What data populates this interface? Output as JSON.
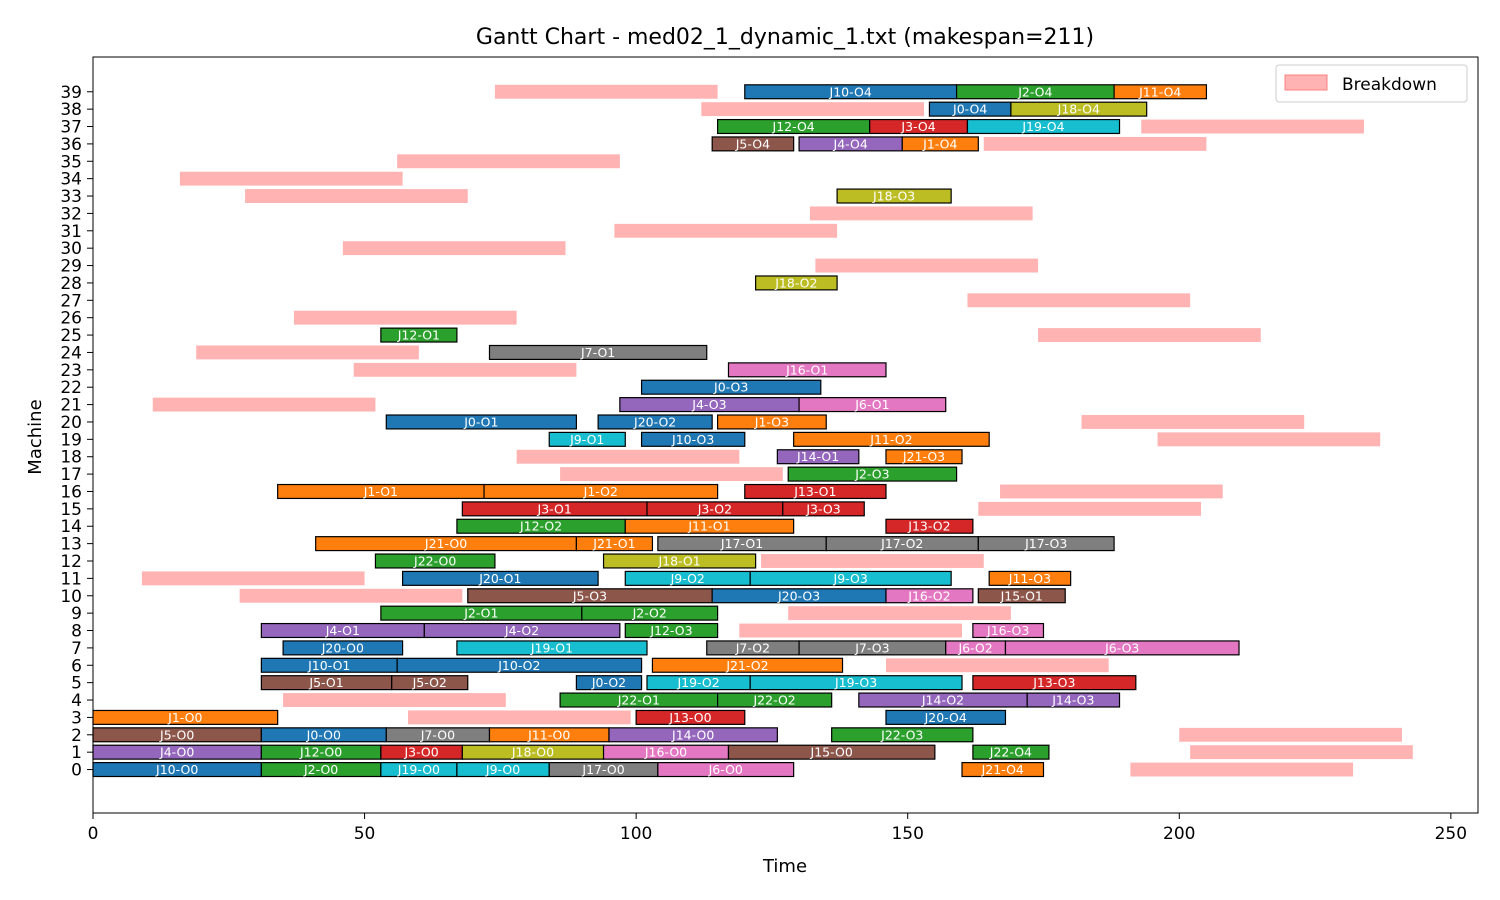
{
  "chart_data": {
    "type": "gantt",
    "title": "Gantt Chart - med02_1_dynamic_1.txt (makespan=211)",
    "xlabel": "Time",
    "ylabel": "Machine",
    "xlim": [
      0,
      255
    ],
    "ylim": [
      -2.5,
      41
    ],
    "x_ticks": [
      0,
      50,
      100,
      150,
      200,
      250
    ],
    "y_ticks": [
      0,
      1,
      2,
      3,
      4,
      5,
      6,
      7,
      8,
      9,
      10,
      11,
      12,
      13,
      14,
      15,
      16,
      17,
      18,
      19,
      20,
      21,
      22,
      23,
      24,
      25,
      26,
      27,
      28,
      29,
      30,
      31,
      32,
      33,
      34,
      35,
      36,
      37,
      38,
      39
    ],
    "legend": {
      "entries": [
        "Breakdown"
      ],
      "placement": "top-right"
    },
    "colors": {
      "breakdown": "#ffb3b3",
      "J0": "#1f77b4",
      "J1": "#ff7f0e",
      "J2": "#2ca02c",
      "J3": "#d62728",
      "J4": "#9467bd",
      "J5": "#8c564b",
      "J6": "#e377c2",
      "J7": "#7f7f7f",
      "J8": "#bcbd22",
      "J9": "#17becf",
      "J10": "#1f77b4",
      "J11": "#ff7f0e",
      "J12": "#2ca02c",
      "J13": "#d62728",
      "J14": "#9467bd",
      "J15": "#8c564b",
      "J16": "#e377c2",
      "J17": "#7f7f7f",
      "J18": "#bcbd22",
      "J19": "#17becf",
      "J20": "#1f77b4",
      "J21": "#ff7f0e",
      "J22": "#2ca02c"
    },
    "breakdowns": [
      {
        "machine": 39,
        "start": 74,
        "end": 115
      },
      {
        "machine": 38,
        "start": 112,
        "end": 153
      },
      {
        "machine": 37,
        "start": 193,
        "end": 234
      },
      {
        "machine": 36,
        "start": 164,
        "end": 205
      },
      {
        "machine": 35,
        "start": 56,
        "end": 97
      },
      {
        "machine": 34,
        "start": 16,
        "end": 57
      },
      {
        "machine": 33,
        "start": 28,
        "end": 69
      },
      {
        "machine": 32,
        "start": 132,
        "end": 173
      },
      {
        "machine": 31,
        "start": 96,
        "end": 137
      },
      {
        "machine": 30,
        "start": 46,
        "end": 87
      },
      {
        "machine": 29,
        "start": 133,
        "end": 174
      },
      {
        "machine": 27,
        "start": 161,
        "end": 202
      },
      {
        "machine": 26,
        "start": 37,
        "end": 78
      },
      {
        "machine": 25,
        "start": 174,
        "end": 215
      },
      {
        "machine": 24,
        "start": 19,
        "end": 60
      },
      {
        "machine": 23,
        "start": 48,
        "end": 89
      },
      {
        "machine": 21,
        "start": 11,
        "end": 52
      },
      {
        "machine": 20,
        "start": 182,
        "end": 223
      },
      {
        "machine": 19,
        "start": 196,
        "end": 237
      },
      {
        "machine": 18,
        "start": 78,
        "end": 119
      },
      {
        "machine": 17,
        "start": 86,
        "end": 127
      },
      {
        "machine": 16,
        "start": 167,
        "end": 208
      },
      {
        "machine": 15,
        "start": 163,
        "end": 204
      },
      {
        "machine": 12,
        "start": 123,
        "end": 164
      },
      {
        "machine": 11,
        "start": 9,
        "end": 50
      },
      {
        "machine": 10,
        "start": 27,
        "end": 68
      },
      {
        "machine": 9,
        "start": 128,
        "end": 169
      },
      {
        "machine": 8,
        "start": 119,
        "end": 160
      },
      {
        "machine": 6,
        "start": 146,
        "end": 187
      },
      {
        "machine": 4,
        "start": 35,
        "end": 76
      },
      {
        "machine": 3,
        "start": 58,
        "end": 99
      },
      {
        "machine": 2,
        "start": 200,
        "end": 241
      },
      {
        "machine": 1,
        "start": 202,
        "end": 243
      },
      {
        "machine": 0,
        "start": 191,
        "end": 232
      }
    ],
    "operations": [
      {
        "machine": 39,
        "start": 120,
        "end": 159,
        "job": "J10",
        "label": "J10-O4"
      },
      {
        "machine": 39,
        "start": 159,
        "end": 188,
        "job": "J2",
        "label": "J2-O4"
      },
      {
        "machine": 39,
        "start": 188,
        "end": 205,
        "job": "J11",
        "label": "J11-O4"
      },
      {
        "machine": 38,
        "start": 154,
        "end": 169,
        "job": "J0",
        "label": "J0-O4"
      },
      {
        "machine": 38,
        "start": 169,
        "end": 194,
        "job": "J18",
        "label": "J18-O4"
      },
      {
        "machine": 37,
        "start": 115,
        "end": 143,
        "job": "J12",
        "label": "J12-O4"
      },
      {
        "machine": 37,
        "start": 143,
        "end": 161,
        "job": "J3",
        "label": "J3-O4"
      },
      {
        "machine": 37,
        "start": 161,
        "end": 189,
        "job": "J19",
        "label": "J19-O4"
      },
      {
        "machine": 36,
        "start": 114,
        "end": 129,
        "job": "J5",
        "label": "J5-O4"
      },
      {
        "machine": 36,
        "start": 130,
        "end": 149,
        "job": "J4",
        "label": "J4-O4"
      },
      {
        "machine": 36,
        "start": 149,
        "end": 163,
        "job": "J1",
        "label": "J1-O4"
      },
      {
        "machine": 33,
        "start": 137,
        "end": 158,
        "job": "J18",
        "label": "J18-O3"
      },
      {
        "machine": 28,
        "start": 122,
        "end": 137,
        "job": "J18",
        "label": "J18-O2"
      },
      {
        "machine": 25,
        "start": 53,
        "end": 67,
        "job": "J12",
        "label": "J12-O1"
      },
      {
        "machine": 24,
        "start": 73,
        "end": 113,
        "job": "J7",
        "label": "J7-O1"
      },
      {
        "machine": 23,
        "start": 117,
        "end": 146,
        "job": "J16",
        "label": "J16-O1"
      },
      {
        "machine": 22,
        "start": 101,
        "end": 134,
        "job": "J0",
        "label": "J0-O3"
      },
      {
        "machine": 21,
        "start": 97,
        "end": 130,
        "job": "J4",
        "label": "J4-O3"
      },
      {
        "machine": 21,
        "start": 130,
        "end": 157,
        "job": "J6",
        "label": "J6-O1"
      },
      {
        "machine": 20,
        "start": 54,
        "end": 89,
        "job": "J0",
        "label": "J0-O1"
      },
      {
        "machine": 20,
        "start": 93,
        "end": 114,
        "job": "J20",
        "label": "J20-O2"
      },
      {
        "machine": 20,
        "start": 115,
        "end": 135,
        "job": "J1",
        "label": "J1-O3"
      },
      {
        "machine": 19,
        "start": 84,
        "end": 98,
        "job": "J9",
        "label": "J9-O1"
      },
      {
        "machine": 19,
        "start": 101,
        "end": 120,
        "job": "J10",
        "label": "J10-O3"
      },
      {
        "machine": 19,
        "start": 129,
        "end": 165,
        "job": "J11",
        "label": "J11-O2"
      },
      {
        "machine": 18,
        "start": 126,
        "end": 141,
        "job": "J14",
        "label": "J14-O1"
      },
      {
        "machine": 18,
        "start": 146,
        "end": 160,
        "job": "J21",
        "label": "J21-O3"
      },
      {
        "machine": 17,
        "start": 128,
        "end": 159,
        "job": "J2",
        "label": "J2-O3"
      },
      {
        "machine": 16,
        "start": 34,
        "end": 72,
        "job": "J1",
        "label": "J1-O1"
      },
      {
        "machine": 16,
        "start": 72,
        "end": 115,
        "job": "J1",
        "label": "J1-O2"
      },
      {
        "machine": 16,
        "start": 120,
        "end": 146,
        "job": "J13",
        "label": "J13-O1"
      },
      {
        "machine": 15,
        "start": 68,
        "end": 102,
        "job": "J3",
        "label": "J3-O1"
      },
      {
        "machine": 15,
        "start": 102,
        "end": 127,
        "job": "J3",
        "label": "J3-O2"
      },
      {
        "machine": 15,
        "start": 127,
        "end": 142,
        "job": "J3",
        "label": "J3-O3"
      },
      {
        "machine": 14,
        "start": 67,
        "end": 98,
        "job": "J12",
        "label": "J12-O2"
      },
      {
        "machine": 14,
        "start": 98,
        "end": 129,
        "job": "J11",
        "label": "J11-O1"
      },
      {
        "machine": 14,
        "start": 146,
        "end": 162,
        "job": "J13",
        "label": "J13-O2"
      },
      {
        "machine": 13,
        "start": 41,
        "end": 89,
        "job": "J21",
        "label": "J21-O0"
      },
      {
        "machine": 13,
        "start": 89,
        "end": 103,
        "job": "J21",
        "label": "J21-O1"
      },
      {
        "machine": 13,
        "start": 104,
        "end": 135,
        "job": "J17",
        "label": "J17-O1"
      },
      {
        "machine": 13,
        "start": 135,
        "end": 163,
        "job": "J17",
        "label": "J17-O2"
      },
      {
        "machine": 13,
        "start": 163,
        "end": 188,
        "job": "J17",
        "label": "J17-O3"
      },
      {
        "machine": 12,
        "start": 52,
        "end": 74,
        "job": "J22",
        "label": "J22-O0"
      },
      {
        "machine": 12,
        "start": 94,
        "end": 122,
        "job": "J18",
        "label": "J18-O1"
      },
      {
        "machine": 11,
        "start": 57,
        "end": 93,
        "job": "J20",
        "label": "J20-O1"
      },
      {
        "machine": 11,
        "start": 98,
        "end": 121,
        "job": "J9",
        "label": "J9-O2"
      },
      {
        "machine": 11,
        "start": 121,
        "end": 158,
        "job": "J9",
        "label": "J9-O3"
      },
      {
        "machine": 11,
        "start": 165,
        "end": 180,
        "job": "J11",
        "label": "J11-O3"
      },
      {
        "machine": 10,
        "start": 69,
        "end": 114,
        "job": "J5",
        "label": "J5-O3"
      },
      {
        "machine": 10,
        "start": 114,
        "end": 146,
        "job": "J20",
        "label": "J20-O3"
      },
      {
        "machine": 10,
        "start": 146,
        "end": 162,
        "job": "J16",
        "label": "J16-O2"
      },
      {
        "machine": 10,
        "start": 163,
        "end": 179,
        "job": "J15",
        "label": "J15-O1"
      },
      {
        "machine": 9,
        "start": 53,
        "end": 90,
        "job": "J2",
        "label": "J2-O1"
      },
      {
        "machine": 9,
        "start": 90,
        "end": 115,
        "job": "J2",
        "label": "J2-O2"
      },
      {
        "machine": 8,
        "start": 31,
        "end": 61,
        "job": "J4",
        "label": "J4-O1"
      },
      {
        "machine": 8,
        "start": 61,
        "end": 97,
        "job": "J4",
        "label": "J4-O2"
      },
      {
        "machine": 8,
        "start": 98,
        "end": 115,
        "job": "J12",
        "label": "J12-O3"
      },
      {
        "machine": 8,
        "start": 162,
        "end": 175,
        "job": "J16",
        "label": "J16-O3"
      },
      {
        "machine": 7,
        "start": 35,
        "end": 57,
        "job": "J20",
        "label": "J20-O0"
      },
      {
        "machine": 7,
        "start": 67,
        "end": 102,
        "job": "J19",
        "label": "J19-O1"
      },
      {
        "machine": 7,
        "start": 113,
        "end": 130,
        "job": "J7",
        "label": "J7-O2"
      },
      {
        "machine": 7,
        "start": 130,
        "end": 157,
        "job": "J7",
        "label": "J7-O3"
      },
      {
        "machine": 7,
        "start": 157,
        "end": 168,
        "job": "J6",
        "label": "J6-O2"
      },
      {
        "machine": 7,
        "start": 168,
        "end": 211,
        "job": "J6",
        "label": "J6-O3"
      },
      {
        "machine": 6,
        "start": 31,
        "end": 56,
        "job": "J10",
        "label": "J10-O1"
      },
      {
        "machine": 6,
        "start": 56,
        "end": 101,
        "job": "J10",
        "label": "J10-O2"
      },
      {
        "machine": 6,
        "start": 103,
        "end": 138,
        "job": "J21",
        "label": "J21-O2"
      },
      {
        "machine": 5,
        "start": 31,
        "end": 55,
        "job": "J5",
        "label": "J5-O1"
      },
      {
        "machine": 5,
        "start": 55,
        "end": 69,
        "job": "J5",
        "label": "J5-O2"
      },
      {
        "machine": 5,
        "start": 89,
        "end": 101,
        "job": "J0",
        "label": "J0-O2"
      },
      {
        "machine": 5,
        "start": 102,
        "end": 121,
        "job": "J19",
        "label": "J19-O2"
      },
      {
        "machine": 5,
        "start": 121,
        "end": 160,
        "job": "J19",
        "label": "J19-O3"
      },
      {
        "machine": 5,
        "start": 162,
        "end": 192,
        "job": "J13",
        "label": "J13-O3"
      },
      {
        "machine": 4,
        "start": 86,
        "end": 115,
        "job": "J22",
        "label": "J22-O1"
      },
      {
        "machine": 4,
        "start": 115,
        "end": 136,
        "job": "J22",
        "label": "J22-O2"
      },
      {
        "machine": 4,
        "start": 141,
        "end": 172,
        "job": "J14",
        "label": "J14-O2"
      },
      {
        "machine": 4,
        "start": 172,
        "end": 189,
        "job": "J14",
        "label": "J14-O3"
      },
      {
        "machine": 3,
        "start": 0,
        "end": 34,
        "job": "J1",
        "label": "J1-O0"
      },
      {
        "machine": 3,
        "start": 100,
        "end": 120,
        "job": "J13",
        "label": "J13-O0"
      },
      {
        "machine": 3,
        "start": 146,
        "end": 168,
        "job": "J20",
        "label": "J20-O4"
      },
      {
        "machine": 2,
        "start": 0,
        "end": 31,
        "job": "J5",
        "label": "J5-O0"
      },
      {
        "machine": 2,
        "start": 31,
        "end": 54,
        "job": "J0",
        "label": "J0-O0"
      },
      {
        "machine": 2,
        "start": 54,
        "end": 73,
        "job": "J7",
        "label": "J7-O0"
      },
      {
        "machine": 2,
        "start": 73,
        "end": 95,
        "job": "J11",
        "label": "J11-O0"
      },
      {
        "machine": 2,
        "start": 95,
        "end": 126,
        "job": "J14",
        "label": "J14-O0"
      },
      {
        "machine": 2,
        "start": 136,
        "end": 162,
        "job": "J22",
        "label": "J22-O3"
      },
      {
        "machine": 1,
        "start": 0,
        "end": 31,
        "job": "J4",
        "label": "J4-O0"
      },
      {
        "machine": 1,
        "start": 31,
        "end": 53,
        "job": "J12",
        "label": "J12-O0"
      },
      {
        "machine": 1,
        "start": 53,
        "end": 68,
        "job": "J3",
        "label": "J3-O0"
      },
      {
        "machine": 1,
        "start": 68,
        "end": 94,
        "job": "J18",
        "label": "J18-O0"
      },
      {
        "machine": 1,
        "start": 94,
        "end": 117,
        "job": "J16",
        "label": "J16-O0"
      },
      {
        "machine": 1,
        "start": 117,
        "end": 155,
        "job": "J15",
        "label": "J15-O0"
      },
      {
        "machine": 1,
        "start": 162,
        "end": 176,
        "job": "J22",
        "label": "J22-O4"
      },
      {
        "machine": 0,
        "start": 0,
        "end": 31,
        "job": "J10",
        "label": "J10-O0"
      },
      {
        "machine": 0,
        "start": 31,
        "end": 53,
        "job": "J2",
        "label": "J2-O0"
      },
      {
        "machine": 0,
        "start": 53,
        "end": 67,
        "job": "J19",
        "label": "J19-O0"
      },
      {
        "machine": 0,
        "start": 67,
        "end": 84,
        "job": "J9",
        "label": "J9-O0"
      },
      {
        "machine": 0,
        "start": 84,
        "end": 104,
        "job": "J17",
        "label": "J17-O0"
      },
      {
        "machine": 0,
        "start": 104,
        "end": 129,
        "job": "J6",
        "label": "J6-O0"
      },
      {
        "machine": 0,
        "start": 160,
        "end": 175,
        "job": "J21",
        "label": "J21-O4"
      }
    ]
  }
}
